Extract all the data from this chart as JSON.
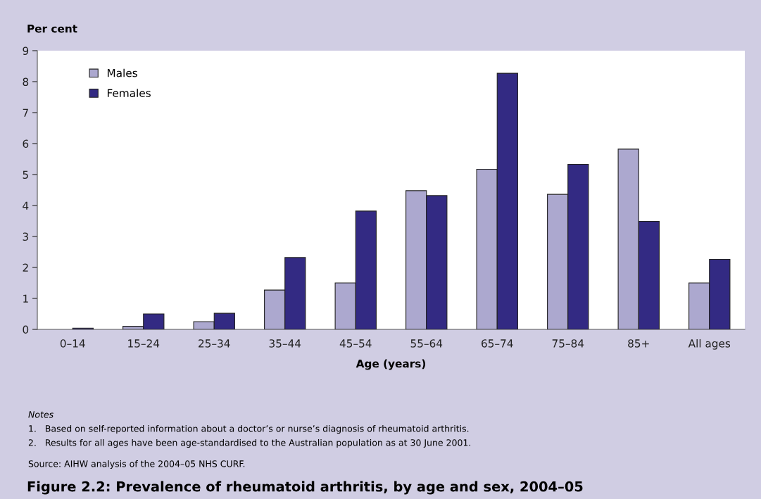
{
  "chart_data": {
    "type": "bar",
    "title": "Figure 2.2: Prevalence of rheumatoid arthritis, by age and sex, 2004–05",
    "ylabel": "Per cent",
    "xlabel": "Age (years)",
    "categories": [
      "0–14",
      "15–24",
      "25–34",
      "35–44",
      "45–54",
      "55–64",
      "65–74",
      "75–84",
      "85+",
      "All ages"
    ],
    "series": [
      {
        "name": "Males",
        "color": "#aca8cf",
        "values": [
          null,
          0.1,
          0.25,
          1.27,
          1.5,
          4.48,
          5.17,
          4.36,
          5.82,
          1.5
        ]
      },
      {
        "name": "Females",
        "color": "#332a83",
        "values": [
          0.04,
          0.5,
          0.52,
          2.32,
          3.82,
          4.32,
          8.27,
          5.33,
          3.49,
          2.26
        ]
      }
    ],
    "ylim": [
      0,
      9
    ],
    "yticks": [
      0,
      1,
      2,
      3,
      4,
      5,
      6,
      7,
      8,
      9
    ],
    "grid": false,
    "legend": "top left",
    "annotations": [
      "Notes",
      "1.   Based on self-reported information about a doctor’s or nurse’s diagnosis of rheumatoid arthritis.",
      "2.   Results for all ages have been age-standardised to the Australian population as at 30 June 2001.",
      "Source: AIHW analysis of the 2004–05 NHS CURF."
    ]
  }
}
